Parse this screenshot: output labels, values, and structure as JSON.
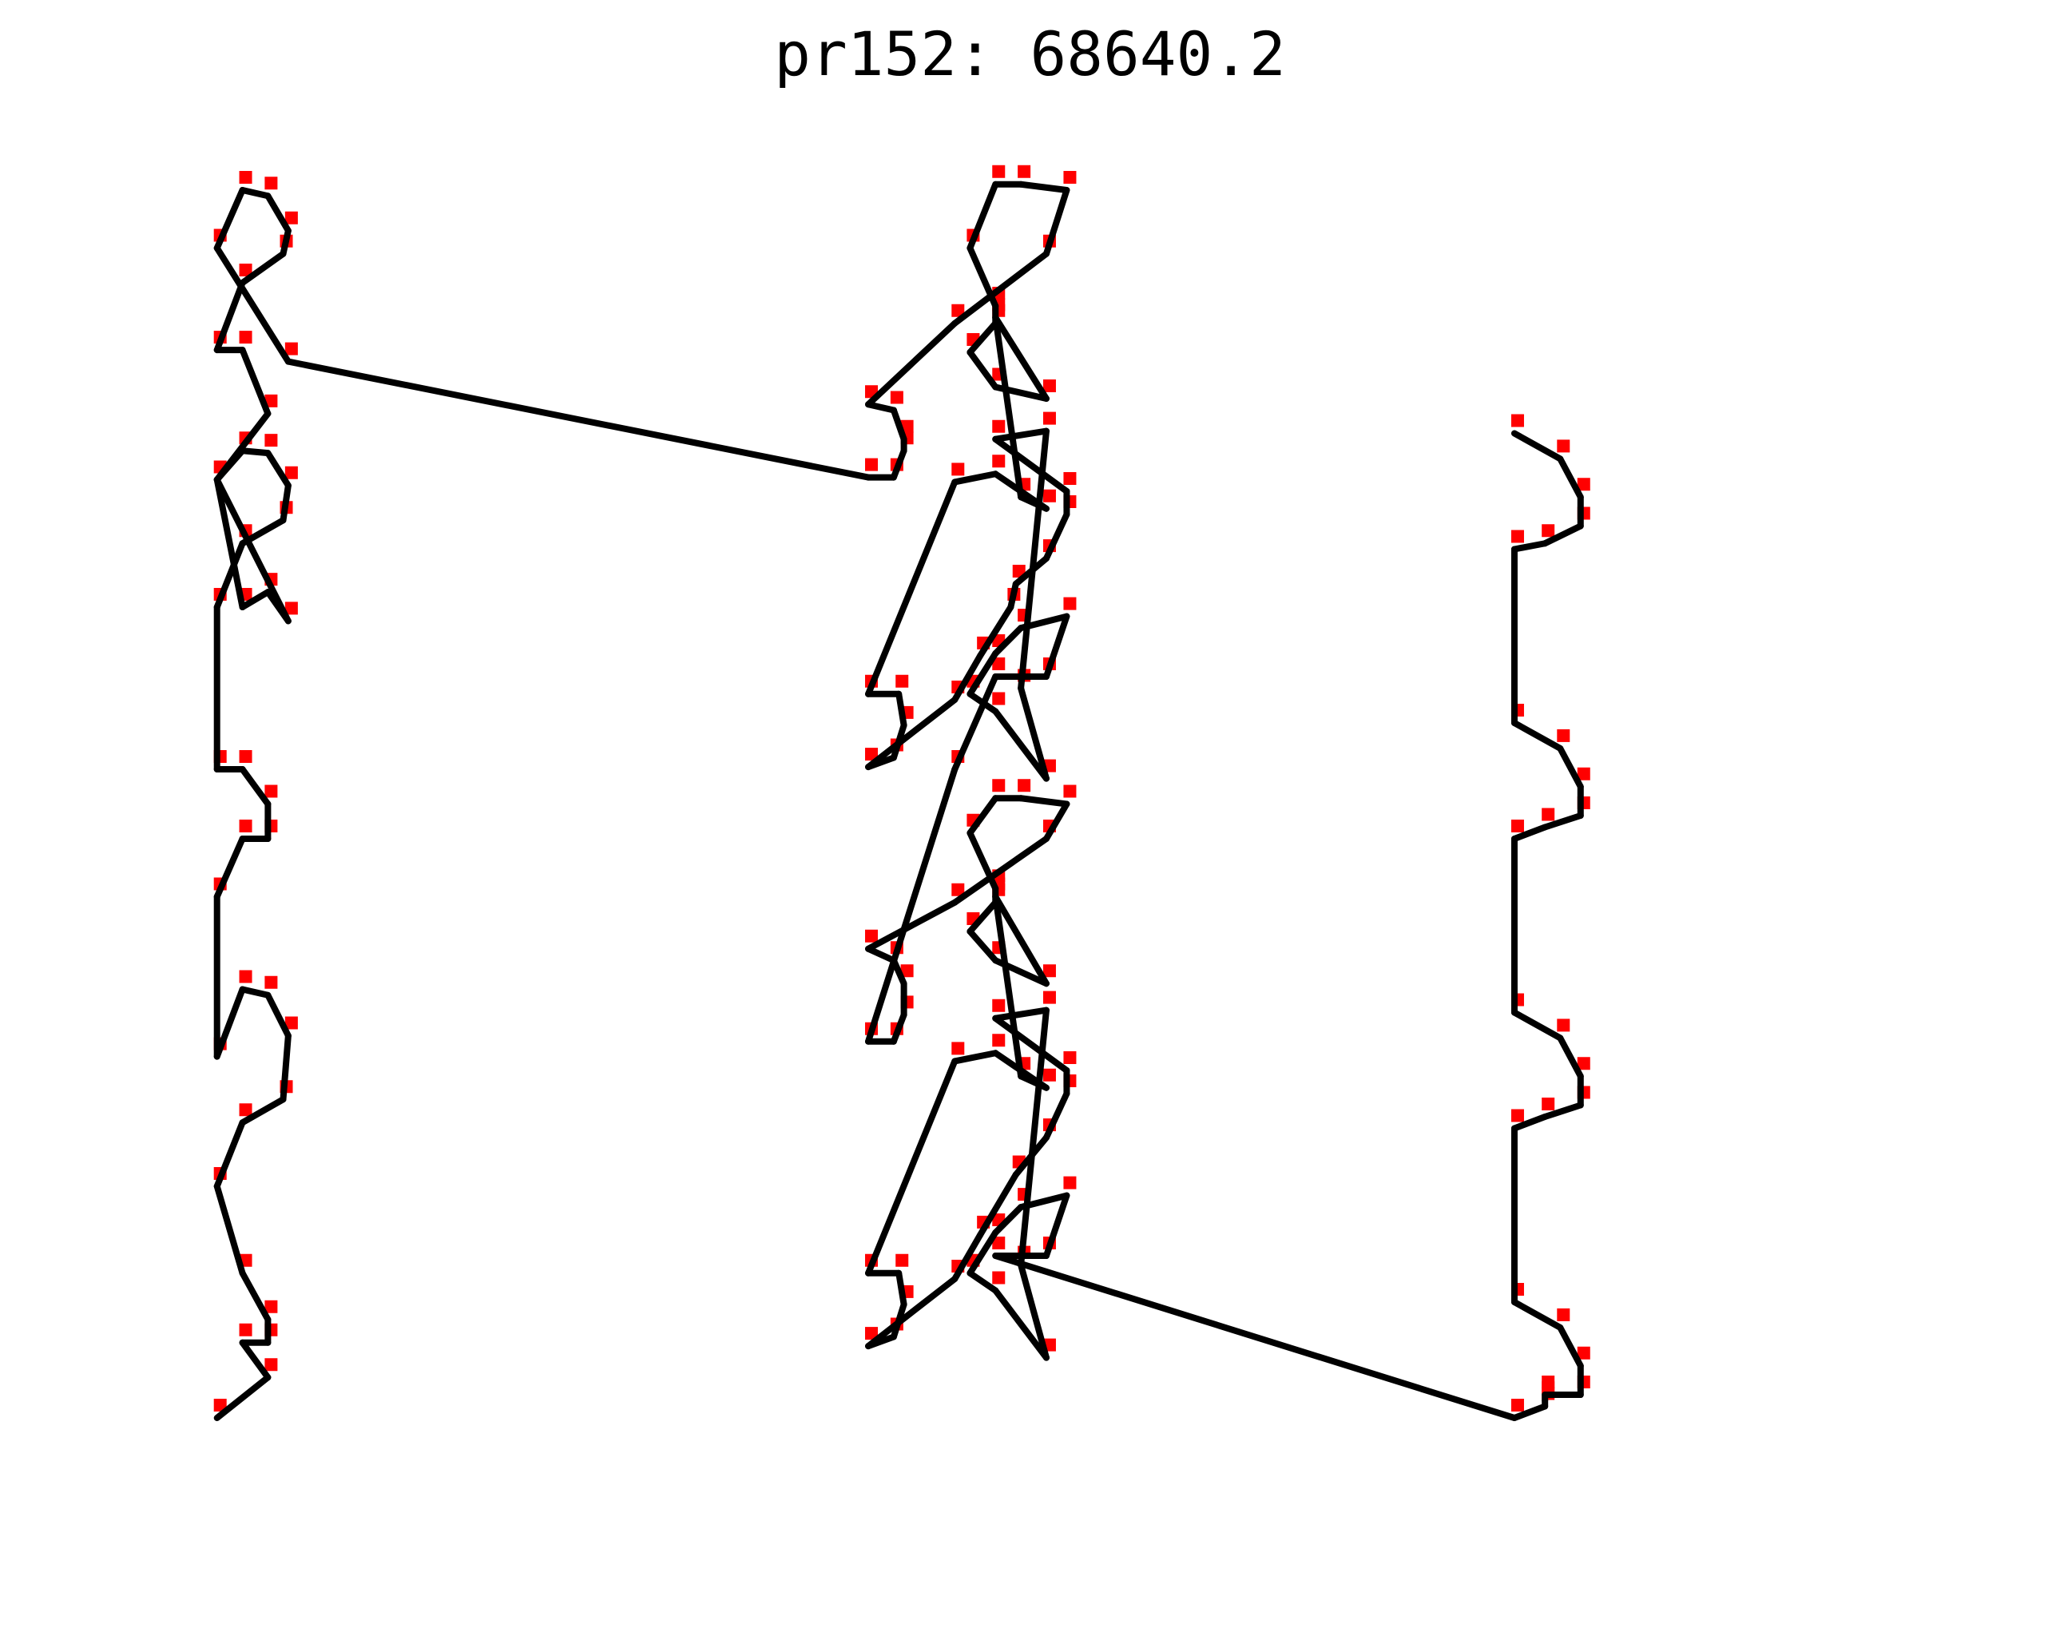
{
  "chart_data": {
    "type": "scatter",
    "title": "pr152: 68640.2",
    "xlabel": "",
    "ylabel": "",
    "axes": "off",
    "grid": false,
    "marker_color": "#ff0000",
    "line_color": "#000000",
    "xlim": [
      -50,
      1600
    ],
    "ylim": [
      -60,
      1100
    ],
    "tour": [
      [
        0,
        0
      ],
      [
        50,
        35
      ],
      [
        25,
        65
      ],
      [
        50,
        65
      ],
      [
        50,
        85
      ],
      [
        25,
        125
      ],
      [
        0,
        200
      ],
      [
        25,
        255
      ],
      [
        65,
        275
      ],
      [
        70,
        330
      ],
      [
        50,
        365
      ],
      [
        25,
        370
      ],
      [
        0,
        312
      ],
      [
        0,
        450
      ],
      [
        25,
        500
      ],
      [
        50,
        500
      ],
      [
        50,
        530
      ],
      [
        25,
        560
      ],
      [
        0,
        560
      ],
      [
        0,
        700
      ],
      [
        25,
        755
      ],
      [
        65,
        775
      ],
      [
        70,
        805
      ],
      [
        50,
        833
      ],
      [
        25,
        835
      ],
      [
        0,
        810
      ],
      [
        70,
        688
      ],
      [
        50,
        713
      ],
      [
        25,
        700
      ],
      [
        0,
        810
      ],
      [
        50,
        867
      ],
      [
        25,
        922
      ],
      [
        0,
        922
      ],
      [
        25,
        980
      ],
      [
        65,
        1005
      ],
      [
        70,
        1025
      ],
      [
        50,
        1055
      ],
      [
        25,
        1060
      ],
      [
        0,
        1010
      ],
      [
        70,
        912
      ],
      [
        640,
        812
      ],
      [
        665,
        812
      ],
      [
        675,
        835
      ],
      [
        675,
        845
      ],
      [
        665,
        870
      ],
      [
        665,
        870
      ],
      [
        640,
        875
      ],
      [
        725,
        945
      ],
      [
        815,
        1005
      ],
      [
        835,
        1060
      ],
      [
        790,
        1065
      ],
      [
        765,
        1065
      ],
      [
        740,
        1010
      ],
      [
        765,
        960
      ],
      [
        765,
        945
      ],
      [
        740,
        920
      ],
      [
        765,
        890
      ],
      [
        815,
        880
      ],
      [
        765,
        950
      ],
      [
        790,
        795
      ],
      [
        815,
        785
      ],
      [
        765,
        815
      ],
      [
        725,
        808
      ],
      [
        640,
        625
      ],
      [
        670,
        625
      ],
      [
        675,
        598
      ],
      [
        665,
        570
      ],
      [
        640,
        562
      ],
      [
        725,
        620
      ],
      [
        750,
        658
      ],
      [
        780,
        700
      ],
      [
        785,
        720
      ],
      [
        815,
        742
      ],
      [
        835,
        780
      ],
      [
        835,
        800
      ],
      [
        765,
        845
      ],
      [
        815,
        852
      ],
      [
        790,
        630
      ],
      [
        815,
        552
      ],
      [
        765,
        610
      ],
      [
        740,
        625
      ],
      [
        765,
        660
      ],
      [
        790,
        682
      ],
      [
        835,
        692
      ],
      [
        815,
        640
      ],
      [
        765,
        640
      ],
      [
        725,
        560
      ],
      [
        640,
        325
      ],
      [
        665,
        325
      ],
      [
        675,
        348
      ],
      [
        675,
        375
      ],
      [
        665,
        395
      ],
      [
        640,
        405
      ],
      [
        725,
        445
      ],
      [
        815,
        500
      ],
      [
        835,
        530
      ],
      [
        790,
        535
      ],
      [
        765,
        535
      ],
      [
        740,
        505
      ],
      [
        765,
        457
      ],
      [
        765,
        445
      ],
      [
        740,
        420
      ],
      [
        765,
        395
      ],
      [
        815,
        375
      ],
      [
        765,
        450
      ],
      [
        790,
        295
      ],
      [
        815,
        285
      ],
      [
        765,
        315
      ],
      [
        725,
        308
      ],
      [
        640,
        125
      ],
      [
        670,
        125
      ],
      [
        675,
        98
      ],
      [
        665,
        70
      ],
      [
        640,
        62
      ],
      [
        725,
        120
      ],
      [
        750,
        158
      ],
      [
        785,
        210
      ],
      [
        815,
        242
      ],
      [
        835,
        280
      ],
      [
        835,
        300
      ],
      [
        765,
        345
      ],
      [
        815,
        352
      ],
      [
        790,
        132
      ],
      [
        815,
        52
      ],
      [
        765,
        110
      ],
      [
        740,
        125
      ],
      [
        765,
        160
      ],
      [
        790,
        182
      ],
      [
        835,
        192
      ],
      [
        815,
        140
      ],
      [
        765,
        140
      ],
      [
        1275,
        0
      ],
      [
        1305,
        10
      ],
      [
        1305,
        15
      ],
      [
        1305,
        20
      ],
      [
        1340,
        20
      ],
      [
        1340,
        45
      ],
      [
        1320,
        78
      ],
      [
        1275,
        100
      ],
      [
        1275,
        250
      ],
      [
        1305,
        260
      ],
      [
        1340,
        270
      ],
      [
        1340,
        295
      ],
      [
        1320,
        328
      ],
      [
        1275,
        350
      ],
      [
        1275,
        500
      ],
      [
        1305,
        510
      ],
      [
        1340,
        520
      ],
      [
        1340,
        545
      ],
      [
        1320,
        578
      ],
      [
        1275,
        600
      ],
      [
        1275,
        750
      ],
      [
        1305,
        755
      ],
      [
        1340,
        770
      ],
      [
        1340,
        795
      ],
      [
        1320,
        828
      ],
      [
        1275,
        850
      ]
    ]
  }
}
